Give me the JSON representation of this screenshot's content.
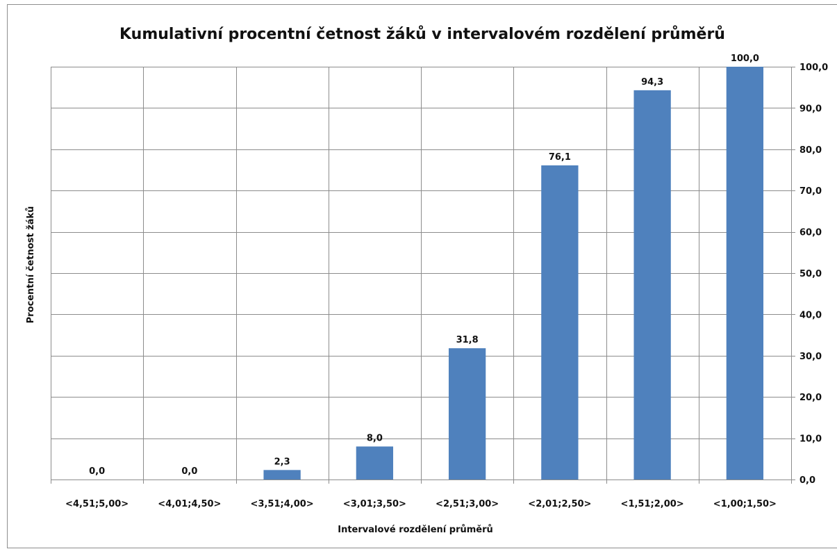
{
  "chart_data": {
    "type": "bar",
    "title": "Kumulativní procentní četnost žáků v intervalovém rozdělení průměrů",
    "xlabel": "Intervalové rozdělení průměrů",
    "ylabel": "Procentní četnost žáků",
    "categories": [
      "<4,51;5,00>",
      "<4,01;4,50>",
      "<3,51;4,00>",
      "<3,01;3,50>",
      "<2,51;3,00>",
      "<2,01;2,50>",
      "<1,51;2,00>",
      "<1,00;1,50>"
    ],
    "values": [
      0.0,
      0.0,
      2.3,
      8.0,
      31.8,
      76.1,
      94.3,
      100.0
    ],
    "data_labels": [
      "0,0",
      "0,0",
      "2,3",
      "8,0",
      "31,8",
      "76,1",
      "94,3",
      "100,0"
    ],
    "ylim": [
      0,
      100
    ],
    "yticks": [
      0,
      10,
      20,
      30,
      40,
      50,
      60,
      70,
      80,
      90,
      100
    ],
    "ytick_labels": [
      "0,0",
      "10,0",
      "20,0",
      "30,0",
      "40,0",
      "50,0",
      "60,0",
      "70,0",
      "80,0",
      "90,0",
      "100,0"
    ],
    "y_axis_side": "right",
    "grid": true,
    "legend": "none",
    "bar_color": "#4f81bd"
  }
}
